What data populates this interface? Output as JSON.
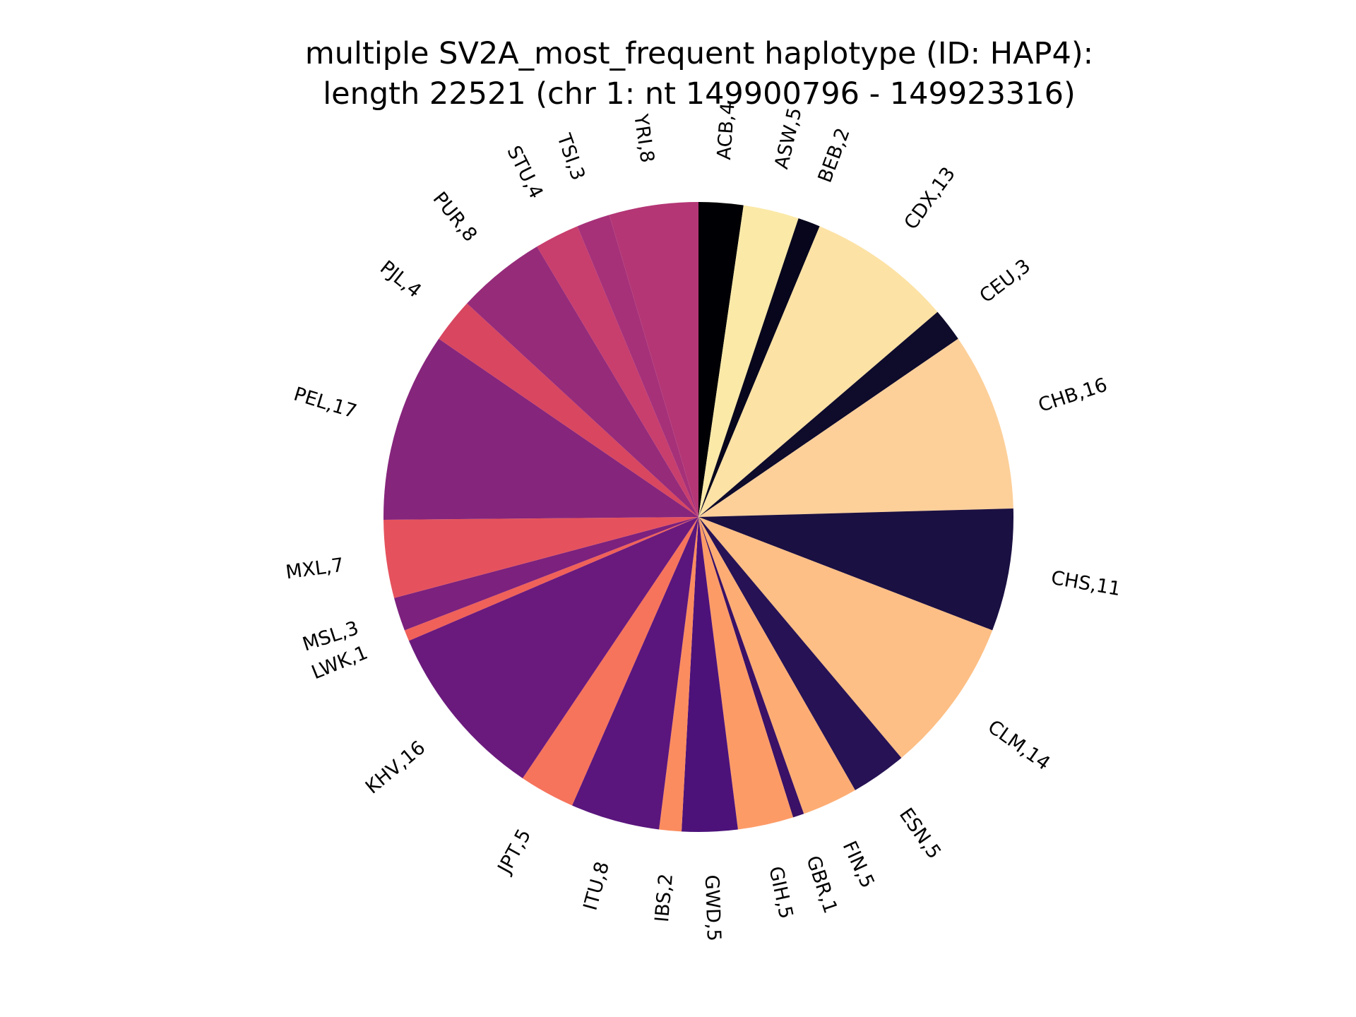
{
  "chart_data": {
    "type": "pie",
    "title": [
      "multiple SV2A_most_frequent haplotype (ID: HAP4):",
      "length 22521 (chr 1: nt 149900796 - 149923316)"
    ],
    "start_angle": "12 o'clock",
    "direction": "clockwise",
    "slices": [
      {
        "label": "ACB",
        "value": 4,
        "text": "ACB,4",
        "color": "#000004"
      },
      {
        "label": "ASW",
        "value": 5,
        "text": "ASW,5",
        "color": "#fbe9a8"
      },
      {
        "label": "BEB",
        "value": 2,
        "text": "BEB,2",
        "color": "#07061c"
      },
      {
        "label": "CDX",
        "value": 13,
        "text": "CDX,13",
        "color": "#fde2a5"
      },
      {
        "label": "CEU",
        "value": 3,
        "text": "CEU,3",
        "color": "#0e0b2b"
      },
      {
        "label": "CHB",
        "value": 16,
        "text": "CHB,16",
        "color": "#fdd09a"
      },
      {
        "label": "CHS",
        "value": 11,
        "text": "CHS,11",
        "color": "#1b1042"
      },
      {
        "label": "CLM",
        "value": 14,
        "text": "CLM,14",
        "color": "#fdbf85"
      },
      {
        "label": "ESN",
        "value": 5,
        "text": "ESN,5",
        "color": "#271255"
      },
      {
        "label": "FIN",
        "value": 5,
        "text": "FIN,5",
        "color": "#fdad74"
      },
      {
        "label": "GBR",
        "value": 1,
        "text": "GBR,1",
        "color": "#3a1166"
      },
      {
        "label": "GIH",
        "value": 5,
        "text": "GIH,5",
        "color": "#fd9b67"
      },
      {
        "label": "GWD",
        "value": 5,
        "text": "GWD,5",
        "color": "#4c127a"
      },
      {
        "label": "IBS",
        "value": 2,
        "text": "IBS,2",
        "color": "#fb8c5f"
      },
      {
        "label": "ITU",
        "value": 8,
        "text": "ITU,8",
        "color": "#5a167d"
      },
      {
        "label": "JPT",
        "value": 5,
        "text": "JPT,5",
        "color": "#f6735c"
      },
      {
        "label": "KHV",
        "value": 16,
        "text": "KHV,16",
        "color": "#6a1a7d"
      },
      {
        "label": "LWK",
        "value": 1,
        "text": "LWK,1",
        "color": "#f06159"
      },
      {
        "label": "MSL",
        "value": 3,
        "text": "MSL,3",
        "color": "#7c217d"
      },
      {
        "label": "MXL",
        "value": 7,
        "text": "MXL,7",
        "color": "#e5525d"
      },
      {
        "label": "PEL",
        "value": 17,
        "text": "PEL,17",
        "color": "#86257c"
      },
      {
        "label": "PJL",
        "value": 4,
        "text": "PJL,4",
        "color": "#d84660"
      },
      {
        "label": "PUR",
        "value": 8,
        "text": "PUR,8",
        "color": "#962b7a"
      },
      {
        "label": "STU",
        "value": 4,
        "text": "STU,4",
        "color": "#c83e6d"
      },
      {
        "label": "TSI",
        "value": 3,
        "text": "TSI,3",
        "color": "#a63179"
      },
      {
        "label": "YRI",
        "value": 8,
        "text": "YRI,8",
        "color": "#b43675"
      }
    ]
  }
}
